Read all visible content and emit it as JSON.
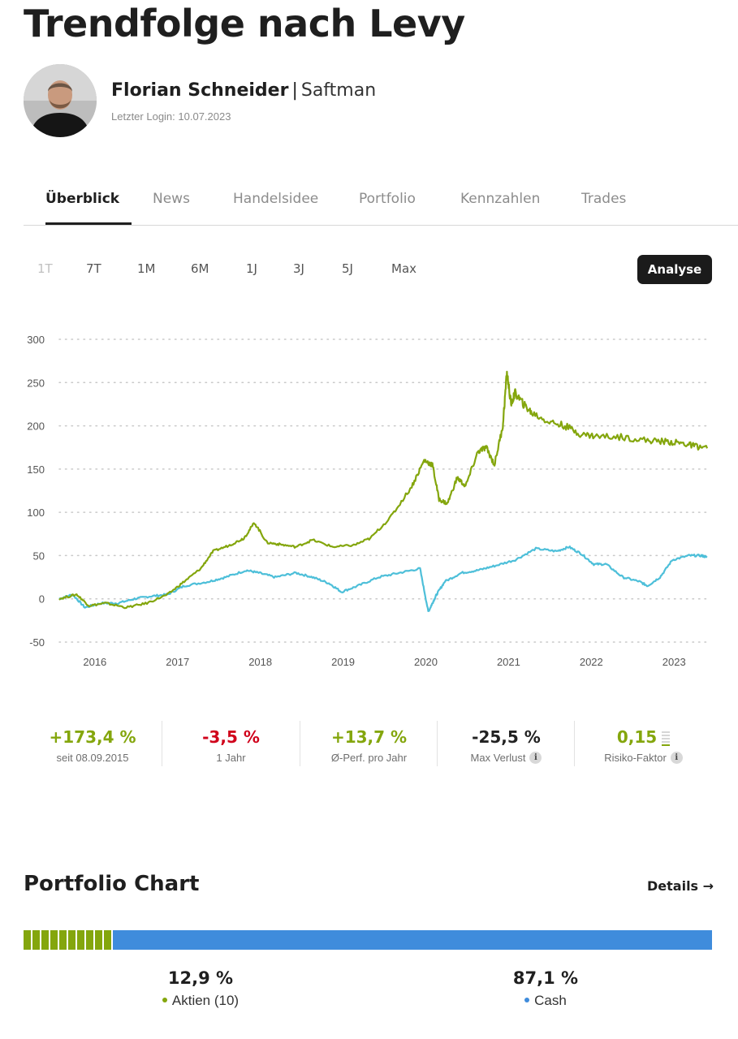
{
  "header": {
    "title": "Trendfolge nach Levy",
    "user_name": "Florian Schneider",
    "separator": "|",
    "nickname": "Saftman",
    "last_login": "Letzter Login: 10.07.2023"
  },
  "tabs": [
    {
      "label": "Überblick",
      "active": true
    },
    {
      "label": "News",
      "active": false
    },
    {
      "label": "Handelsidee",
      "active": false
    },
    {
      "label": "Portfolio",
      "active": false
    },
    {
      "label": "Kennzahlen",
      "active": false
    },
    {
      "label": "Trades",
      "active": false
    }
  ],
  "ranges": [
    {
      "label": "1T",
      "disabled": true
    },
    {
      "label": "7T",
      "disabled": false
    },
    {
      "label": "1M",
      "disabled": false
    },
    {
      "label": "6M",
      "disabled": false
    },
    {
      "label": "1J",
      "disabled": false
    },
    {
      "label": "3J",
      "disabled": false
    },
    {
      "label": "5J",
      "disabled": false
    },
    {
      "label": "Max",
      "disabled": false
    }
  ],
  "analyse_label": "Analyse",
  "chart_data": {
    "type": "line",
    "title": "",
    "xlabel": "",
    "ylabel": "",
    "ylim": [
      -50,
      300
    ],
    "yticks": [
      300,
      250,
      200,
      150,
      100,
      50,
      0,
      -50
    ],
    "xlim": [
      2015.69,
      2023.52
    ],
    "xticks": [
      "2016",
      "2017",
      "2018",
      "2019",
      "2020",
      "2021",
      "2022",
      "2023"
    ],
    "grid": "horizontal dotted",
    "legend": "none",
    "series": [
      {
        "color": "#84a60d",
        "x": [
          2015.69,
          2015.9,
          2016.05,
          2016.25,
          2016.5,
          2016.75,
          2017.0,
          2017.2,
          2017.4,
          2017.55,
          2017.75,
          2017.92,
          2018.05,
          2018.2,
          2018.35,
          2018.55,
          2018.75,
          2019.0,
          2019.25,
          2019.45,
          2019.7,
          2019.95,
          2020.1,
          2020.2,
          2020.28,
          2020.38,
          2020.5,
          2020.6,
          2020.75,
          2020.85,
          2020.95,
          2021.05,
          2021.1,
          2021.15,
          2021.2,
          2021.3,
          2021.4,
          2021.6,
          2021.8,
          2022.0,
          2022.2,
          2022.5,
          2022.8,
          2023.0,
          2023.2,
          2023.35,
          2023.52
        ],
        "y": [
          0,
          5,
          -8,
          -5,
          -10,
          -5,
          5,
          20,
          35,
          55,
          62,
          70,
          88,
          65,
          63,
          60,
          68,
          60,
          62,
          70,
          95,
          130,
          160,
          155,
          115,
          110,
          140,
          130,
          170,
          175,
          155,
          200,
          262,
          225,
          238,
          225,
          215,
          205,
          200,
          190,
          188,
          187,
          183,
          182,
          180,
          177,
          174
        ]
      },
      {
        "color": "#4dbfd9",
        "x": [
          2015.69,
          2015.85,
          2016.0,
          2016.2,
          2016.4,
          2016.6,
          2016.8,
          2017.0,
          2017.2,
          2017.5,
          2017.7,
          2017.95,
          2018.1,
          2018.3,
          2018.55,
          2018.75,
          2018.95,
          2019.1,
          2019.3,
          2019.55,
          2019.8,
          2020.05,
          2020.15,
          2020.2,
          2020.25,
          2020.35,
          2020.55,
          2020.75,
          2020.95,
          2021.2,
          2021.45,
          2021.7,
          2021.85,
          2022.0,
          2022.15,
          2022.3,
          2022.5,
          2022.7,
          2022.8,
          2022.95,
          2023.1,
          2023.3,
          2023.45,
          2023.52
        ],
        "y": [
          0,
          5,
          -10,
          -5,
          -5,
          0,
          3,
          5,
          15,
          20,
          25,
          33,
          30,
          25,
          30,
          25,
          18,
          8,
          15,
          25,
          30,
          35,
          -15,
          -5,
          5,
          20,
          30,
          33,
          38,
          45,
          58,
          55,
          60,
          52,
          40,
          40,
          25,
          20,
          15,
          25,
          45,
          50,
          50,
          48
        ]
      }
    ]
  },
  "stats": [
    {
      "value": "+173,4 %",
      "label": "seit 08.09.2015",
      "color": "#84a60d",
      "info": false
    },
    {
      "value": "-3,5 %",
      "label": "1 Jahr",
      "color": "#d0021b",
      "info": false
    },
    {
      "value": "+13,7 %",
      "label": "Ø-Perf. pro Jahr",
      "color": "#84a60d",
      "info": false
    },
    {
      "value": "-25,5 %",
      "label": "Max Verlust",
      "color": "#222222",
      "info": true
    },
    {
      "value": "0,15",
      "label": "Risiko-Faktor",
      "color": "#84a60d",
      "info": true
    }
  ],
  "info_glyph": "i",
  "risk_level": 1,
  "risk_scale_max": 5,
  "portfolio_chart": {
    "title": "Portfolio Chart",
    "details_label": "Details →",
    "stocks": {
      "pct": "12,9 %",
      "label": "Aktien (10)",
      "share": 0.129,
      "segments": 10,
      "color": "#84a60d"
    },
    "cash": {
      "pct": "87,1 %",
      "label": "Cash",
      "share": 0.871,
      "color": "#3f8cdc"
    }
  }
}
